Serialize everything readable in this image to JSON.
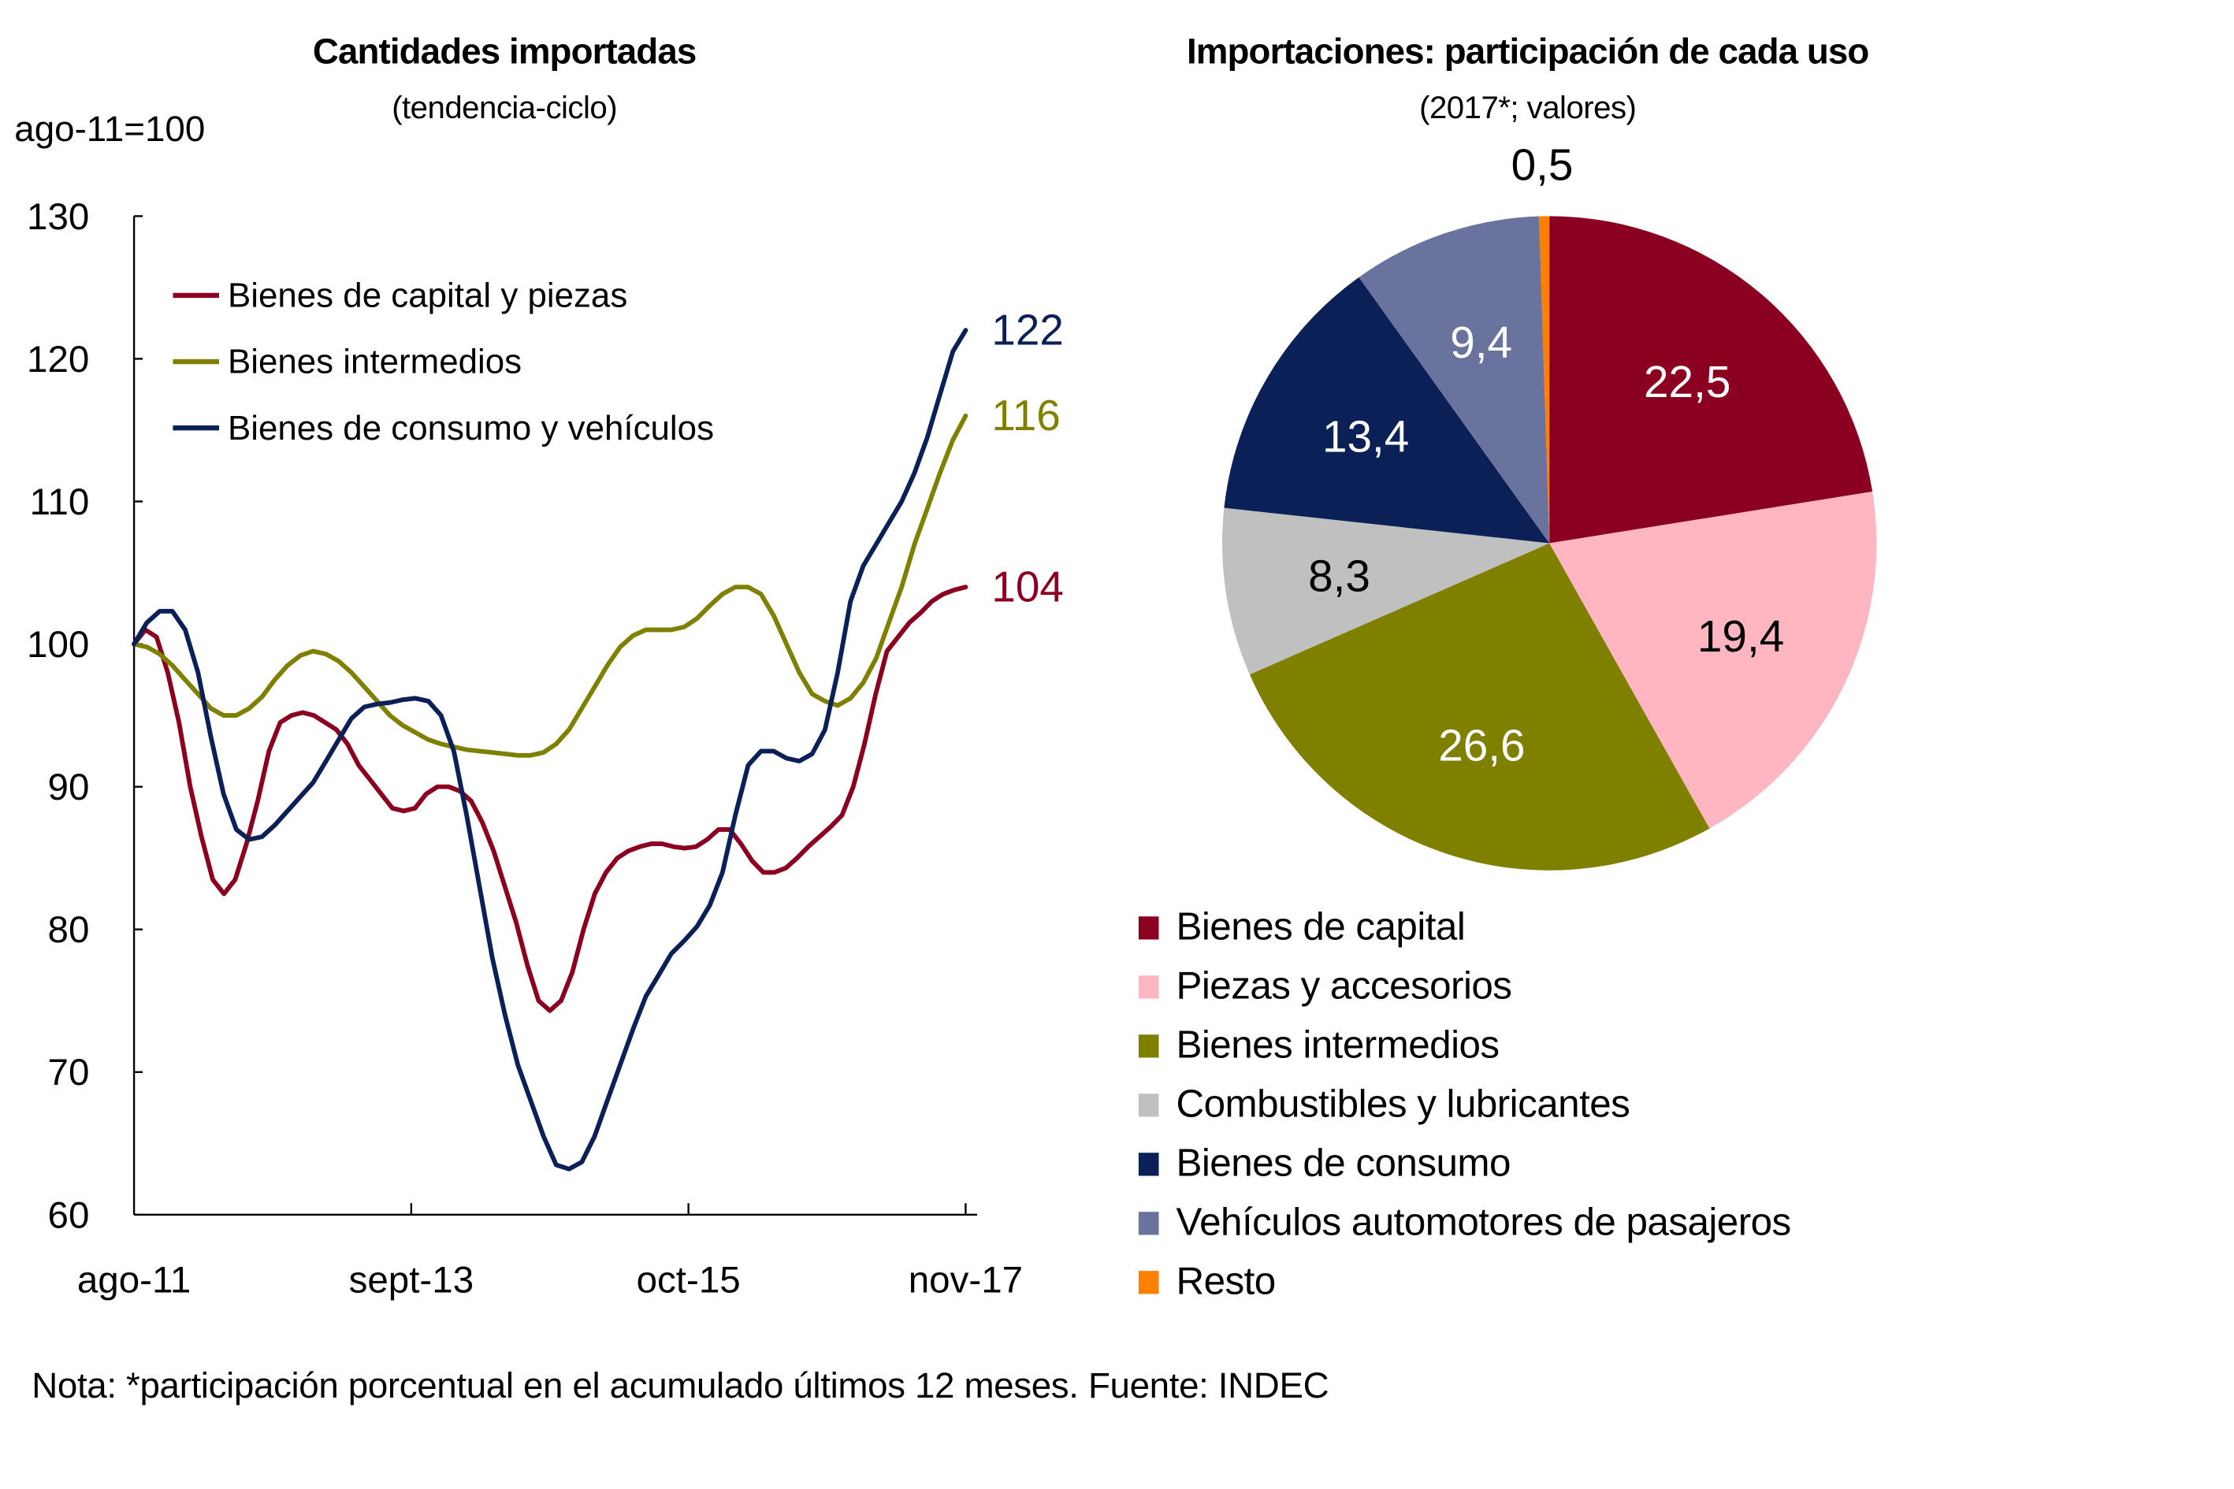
{
  "note": "Nota: *participación porcentual en el acumulado últimos 12 meses. Fuente: INDEC",
  "chart_data": [
    {
      "type": "line",
      "title": "Cantidades importadas",
      "subtitle": "(tendencia-ciclo)",
      "ylabel": "ago-11=100",
      "xlabel": "",
      "ylim": [
        60,
        130
      ],
      "yticks": [
        60,
        70,
        80,
        90,
        100,
        110,
        120,
        130
      ],
      "xtick_labels": [
        "ago-11",
        "sept-13",
        "oct-15",
        "nov-17"
      ],
      "xtick_index": [
        0,
        25,
        50,
        75
      ],
      "grid": false,
      "legend_position": "top-left",
      "series": [
        {
          "name": "Bienes de capital y piezas",
          "color": "#8B0020",
          "end_label": "104",
          "values": [
            100,
            101,
            100.5,
            98,
            94.5,
            90,
            86.5,
            83.5,
            82.5,
            83.5,
            86,
            89,
            92.5,
            94.5,
            95,
            95.2,
            95,
            94.5,
            94,
            93,
            91.5,
            90.5,
            89.5,
            88.5,
            88.3,
            88.5,
            89.5,
            90,
            90,
            89.7,
            89,
            87.5,
            85.5,
            83,
            80.5,
            77.5,
            75,
            74.3,
            75,
            77,
            80,
            82.5,
            84,
            85,
            85.5,
            85.8,
            86,
            86,
            85.8,
            85.7,
            85.8,
            86.3,
            87,
            87,
            86,
            84.8,
            84,
            84,
            84.3,
            85,
            85.8,
            86.5,
            87.2,
            88,
            90,
            93,
            96.5,
            99.5,
            100.5,
            101.5,
            102.2,
            103,
            103.5,
            103.8,
            104
          ]
        },
        {
          "name": "Bienes intermedios",
          "color": "#808000",
          "end_label": "116",
          "values": [
            100,
            99.8,
            99.3,
            98.5,
            97.5,
            96.5,
            95.5,
            95,
            95,
            95.5,
            96.3,
            97.5,
            98.5,
            99.2,
            99.5,
            99.3,
            98.8,
            98,
            97,
            96,
            95,
            94.3,
            93.8,
            93.3,
            93,
            92.8,
            92.6,
            92.5,
            92.4,
            92.3,
            92.2,
            92.2,
            92.4,
            93,
            94,
            95.5,
            97,
            98.5,
            99.8,
            100.6,
            101,
            101,
            101,
            101.2,
            101.8,
            102.7,
            103.5,
            104,
            104,
            103.5,
            102,
            100,
            98,
            96.5,
            96,
            95.7,
            96.2,
            97.3,
            99,
            101.5,
            104,
            107,
            109.5,
            112,
            114.3,
            116
          ]
        },
        {
          "name": "Bienes de consumo y vehículos",
          "color": "#0C2058",
          "end_label": "122",
          "values": [
            100,
            101.5,
            102.3,
            102.3,
            101,
            98,
            93.5,
            89.5,
            87,
            86.3,
            86.5,
            87.3,
            88.3,
            89.3,
            90.3,
            91.8,
            93.3,
            94.8,
            95.6,
            95.8,
            95.9,
            96.1,
            96.2,
            96,
            95,
            92.5,
            88,
            83,
            78,
            74,
            70.5,
            68,
            65.5,
            63.5,
            63.2,
            63.7,
            65.5,
            68,
            70.5,
            73,
            75.3,
            76.8,
            78.3,
            79.2,
            80.2,
            81.7,
            84,
            88,
            91.5,
            92.5,
            92.5,
            92,
            91.8,
            92.3,
            94,
            98,
            103,
            105.5,
            107,
            108.5,
            110,
            112,
            114.5,
            117.5,
            120.5,
            122
          ]
        }
      ]
    },
    {
      "type": "pie",
      "title": "Importaciones: participación de cada uso",
      "subtitle": "(2017*; valores)",
      "legend_position": "bottom-left",
      "slices": [
        {
          "label": "Bienes de capital",
          "value": 22.5,
          "display": "22,5",
          "color": "#8B0020",
          "label_color": "#FFFFFF"
        },
        {
          "label": "Piezas y accesorios",
          "value": 19.4,
          "display": "19,4",
          "color": "#FFB6C1",
          "label_color": "#000000"
        },
        {
          "label": "Bienes intermedios",
          "value": 26.6,
          "display": "26,6",
          "color": "#808000",
          "label_color": "#FFFFFF"
        },
        {
          "label": "Combustibles y lubricantes",
          "value": 8.3,
          "display": "8,3",
          "color": "#C0C0C0",
          "label_color": "#000000"
        },
        {
          "label": "Bienes de consumo",
          "value": 13.4,
          "display": "13,4",
          "color": "#0C2058",
          "label_color": "#FFFFFF"
        },
        {
          "label": "Vehículos automotores de pasajeros",
          "value": 9.4,
          "display": "9,4",
          "color": "#6A739D",
          "label_color": "#FFFFFF"
        },
        {
          "label": "Resto",
          "value": 0.5,
          "display": "0,5",
          "color": "#FF8000",
          "label_color": "#000000"
        }
      ]
    }
  ]
}
